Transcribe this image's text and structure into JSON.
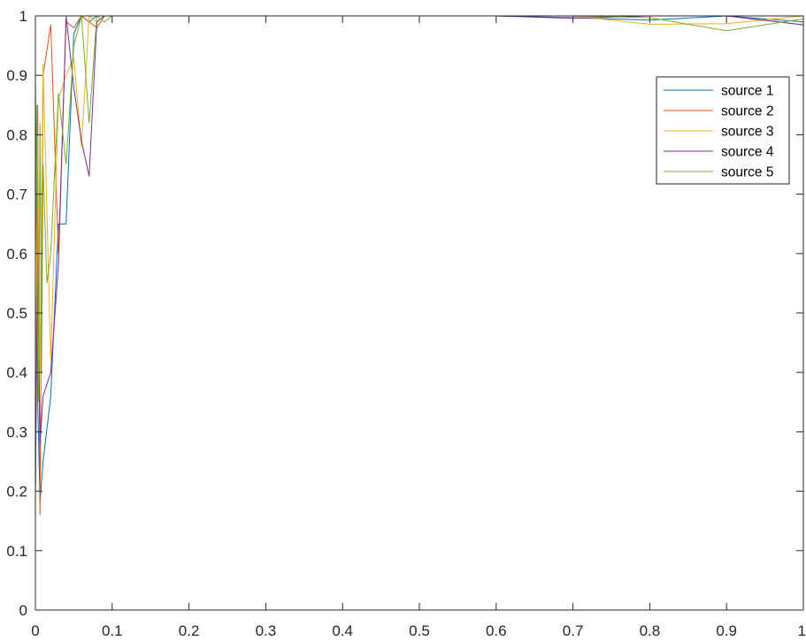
{
  "chart_data": {
    "type": "line",
    "title": "",
    "xlabel": "",
    "ylabel": "",
    "xlim": [
      0,
      1
    ],
    "ylim": [
      0,
      1
    ],
    "xticks": [
      "0",
      "0.1",
      "0.2",
      "0.3",
      "0.4",
      "0.5",
      "0.6",
      "0.7",
      "0.8",
      "0.9",
      "1"
    ],
    "yticks": [
      "0",
      "0.1",
      "0.2",
      "0.3",
      "0.4",
      "0.5",
      "0.6",
      "0.7",
      "0.8",
      "0.9",
      "1"
    ],
    "grid": false,
    "legend_position": "top-right",
    "series": [
      {
        "name": "source 1",
        "color": "#0072BD",
        "x": [
          0.0,
          0.003,
          0.006,
          0.01,
          0.02,
          0.03,
          0.04,
          0.05,
          0.06,
          0.07,
          0.08,
          0.09,
          0.1,
          0.2,
          0.3,
          0.4,
          0.5,
          0.6,
          0.7,
          0.8,
          0.9,
          1.0
        ],
        "y": [
          0.9,
          0.35,
          0.18,
          0.25,
          0.36,
          0.65,
          0.65,
          0.97,
          1.0,
          0.99,
          1.0,
          1.0,
          1.0,
          1.0,
          1.0,
          1.0,
          1.0,
          1.0,
          0.997,
          0.993,
          1.0,
          0.99
        ]
      },
      {
        "name": "source 2",
        "color": "#D95319",
        "x": [
          0.0,
          0.003,
          0.006,
          0.01,
          0.02,
          0.03,
          0.04,
          0.05,
          0.06,
          0.07,
          0.08,
          0.09,
          0.1,
          0.2,
          0.3,
          0.4,
          0.5,
          0.6,
          0.7,
          0.8,
          0.9,
          1.0
        ],
        "y": [
          0.18,
          0.85,
          0.16,
          0.9,
          0.985,
          0.6,
          0.99,
          0.98,
          1.0,
          0.99,
          0.98,
          1.0,
          1.0,
          1.0,
          1.0,
          1.0,
          1.0,
          1.0,
          1.0,
          1.0,
          1.0,
          0.985
        ]
      },
      {
        "name": "source 3",
        "color": "#EDB120",
        "x": [
          0.0,
          0.003,
          0.006,
          0.01,
          0.02,
          0.03,
          0.04,
          0.05,
          0.06,
          0.07,
          0.08,
          0.09,
          0.1,
          0.2,
          0.3,
          0.4,
          0.5,
          0.6,
          0.7,
          0.8,
          0.9,
          1.0
        ],
        "y": [
          0.17,
          0.8,
          0.4,
          0.92,
          0.42,
          0.86,
          0.9,
          0.93,
          0.78,
          1.0,
          0.99,
          1.0,
          1.0,
          1.0,
          1.0,
          1.0,
          1.0,
          1.0,
          1.0,
          0.986,
          0.987,
          1.0
        ]
      },
      {
        "name": "source 4",
        "color": "#7E2F8E",
        "x": [
          0.0,
          0.003,
          0.006,
          0.01,
          0.02,
          0.03,
          0.04,
          0.05,
          0.06,
          0.07,
          0.08,
          0.09,
          0.1,
          0.2,
          0.3,
          0.4,
          0.5,
          0.6,
          0.7,
          0.8,
          0.9,
          1.0
        ],
        "y": [
          0.2,
          0.6,
          0.28,
          0.36,
          0.4,
          0.58,
          1.0,
          0.88,
          0.79,
          0.73,
          0.99,
          1.0,
          1.0,
          1.0,
          1.0,
          1.0,
          1.0,
          1.0,
          0.996,
          1.0,
          1.0,
          0.985
        ]
      },
      {
        "name": "source 5",
        "color": "#77AC30",
        "x": [
          0.0,
          0.002,
          0.004,
          0.006,
          0.008,
          0.01,
          0.015,
          0.02,
          0.03,
          0.04,
          0.05,
          0.06,
          0.07,
          0.08,
          0.09,
          0.1,
          0.2,
          0.3,
          0.4,
          0.5,
          0.6,
          0.7,
          0.8,
          0.9,
          1.0
        ],
        "y": [
          0.6,
          0.85,
          0.35,
          0.82,
          0.4,
          0.75,
          0.55,
          0.6,
          0.87,
          0.75,
          0.95,
          1.0,
          0.82,
          1.0,
          0.99,
          1.0,
          1.0,
          1.0,
          1.0,
          1.0,
          1.0,
          1.0,
          0.997,
          0.975,
          0.995
        ]
      }
    ]
  }
}
